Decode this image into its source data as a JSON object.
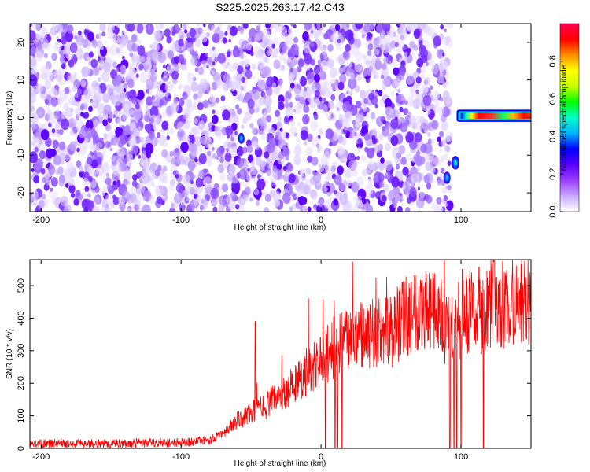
{
  "title": "S225.2025.263.17.42.C43",
  "chart_data": [
    {
      "type": "heatmap",
      "xlabel": "Height of straight line (km)",
      "ylabel": "Frequency (Hz)",
      "xlim": [
        -208,
        150
      ],
      "ylim": [
        -25,
        25
      ],
      "x_ticks": [
        -200,
        -100,
        0,
        100
      ],
      "y_ticks": [
        -20,
        -10,
        0,
        10,
        20
      ],
      "colorbar": {
        "label": "Normalized spectral amplitude",
        "range": [
          0,
          1
        ],
        "ticks": [
          0.0,
          0.2,
          0.4,
          0.6,
          0.8
        ],
        "colors": [
          "#ffffff",
          "#c8a8ff",
          "#9b3dff",
          "#5a00ff",
          "#0000ff",
          "#00b4ff",
          "#00ffc8",
          "#00ff00",
          "#c8ff00",
          "#ffff00",
          "#ff8c00",
          "#ff0000",
          "#ff0050"
        ]
      },
      "noise_region": {
        "x_range": [
          -208,
          92
        ],
        "freq_range": [
          -25,
          25
        ]
      },
      "features": [
        {
          "x_range": [
            98,
            150
          ],
          "freq_range": [
            -0.5,
            1.5
          ],
          "peak_amplitude": 1.0
        },
        {
          "x": -57,
          "freq": -5.5,
          "amplitude": 0.3
        },
        {
          "x": 96,
          "freq": -12,
          "amplitude": 0.55
        },
        {
          "x": 90,
          "freq": -16,
          "amplitude": 0.4
        }
      ]
    },
    {
      "type": "line",
      "xlabel": "Height of straight line (km)",
      "ylabel": "SNR (10 * v/v)",
      "xlim": [
        -208,
        150
      ],
      "ylim": [
        0,
        580
      ],
      "x_ticks": [
        -200,
        -100,
        0,
        100
      ],
      "y_ticks": [
        0,
        100,
        200,
        300,
        400,
        500
      ],
      "color": "#ff0000",
      "trend": {
        "x": [
          -208,
          -150,
          -100,
          -80,
          -70,
          -60,
          -50,
          -40,
          -30,
          -20,
          -10,
          0,
          10,
          20,
          30,
          40,
          50,
          60,
          70,
          80,
          90,
          100,
          110,
          120,
          130,
          140,
          150
        ],
        "y": [
          15,
          15,
          18,
          25,
          45,
          85,
          110,
          130,
          160,
          195,
          230,
          270,
          310,
          330,
          345,
          350,
          355,
          410,
          440,
          420,
          370,
          400,
          420,
          430,
          440,
          450,
          460
        ]
      },
      "dropouts_x": [
        3,
        10,
        12,
        15,
        58,
        92,
        95,
        97,
        100,
        116
      ],
      "spikes": [
        {
          "x": -47,
          "y": 390
        },
        {
          "x": -9,
          "y": 460
        },
        {
          "x": 88,
          "y": 578
        },
        {
          "x": 101,
          "y": 550
        },
        {
          "x": 58,
          "y": 510
        }
      ]
    }
  ]
}
